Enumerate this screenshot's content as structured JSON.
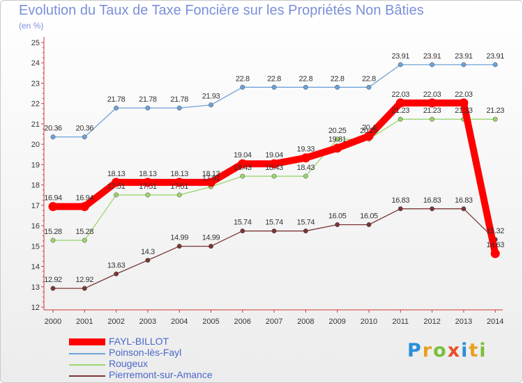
{
  "chart_data": {
    "type": "line",
    "title": "Evolution du Taux de Taxe Foncière sur les Propriétés Non Bâties",
    "unit_label": "(en %)",
    "xlabel": "",
    "ylabel": "",
    "x": [
      "2000",
      "2001",
      "2002",
      "2003",
      "2004",
      "2005",
      "2006",
      "2007",
      "2008",
      "2009",
      "2010",
      "2011",
      "2012",
      "2013",
      "2014"
    ],
    "ylim": [
      12,
      25
    ],
    "yticks": [
      12,
      13,
      14,
      15,
      16,
      17,
      18,
      19,
      20,
      21,
      22,
      23,
      24,
      25
    ],
    "grid": false,
    "legend_position": "bottom-left",
    "series": [
      {
        "name": "FAYL-BILLOT",
        "color": "#ff0000",
        "values": [
          16.94,
          16.94,
          18.13,
          18.13,
          18.13,
          18.13,
          19.04,
          19.04,
          19.33,
          19.81,
          20.4,
          22.03,
          22.03,
          22.03,
          14.63
        ],
        "labels": [
          "16.94",
          "16.94",
          "18.13",
          "18.13",
          "18.13",
          "18.13",
          "19.04",
          "19.04",
          "19.33",
          "19.81",
          "20.4",
          "22.03",
          "22.03",
          "22.03",
          "14.63"
        ]
      },
      {
        "name": "Poinson-lès-Fayl",
        "color": "#6da2d6",
        "values": [
          20.36,
          20.36,
          21.78,
          21.78,
          21.78,
          21.93,
          22.8,
          22.8,
          22.8,
          22.8,
          22.8,
          23.91,
          23.91,
          23.91,
          23.91
        ],
        "labels": [
          "20.36",
          "20.36",
          "21.78",
          "21.78",
          "21.78",
          "21.93",
          "22.8",
          "22.8",
          "22.8",
          "22.8",
          "22.8",
          "23.91",
          "23.91",
          "23.91",
          "23.91"
        ]
      },
      {
        "name": "Rougeux",
        "color": "#9ad56d",
        "values": [
          15.28,
          15.28,
          17.51,
          17.51,
          17.51,
          17.91,
          18.43,
          18.43,
          18.43,
          20.25,
          20.25,
          21.23,
          21.23,
          21.23,
          21.23
        ],
        "labels": [
          "15.28",
          "15.28",
          "17.51",
          "17.51",
          "17.51",
          "17.91",
          "18.43",
          "18.43",
          "18.43",
          "20.25",
          "20.25",
          "21.23",
          "21.23",
          "21.23",
          "21.23"
        ]
      },
      {
        "name": "Pierremont-sur-Amance",
        "color": "#7a3535",
        "values": [
          12.92,
          12.92,
          13.63,
          14.3,
          14.99,
          14.99,
          15.74,
          15.74,
          15.74,
          16.05,
          16.05,
          16.83,
          16.83,
          16.83,
          15.32
        ],
        "labels": [
          "12.92",
          "12.92",
          "13.63",
          "14.3",
          "14.99",
          "14.99",
          "15.74",
          "15.74",
          "15.74",
          "16.05",
          "16.05",
          "16.83",
          "16.83",
          "16.83",
          "15.32"
        ]
      }
    ]
  },
  "logo": {
    "text": "Proxiti",
    "colors": [
      "#2a8fd8",
      "#e8a020",
      "#7bbf3a",
      "#e84e2a"
    ]
  }
}
